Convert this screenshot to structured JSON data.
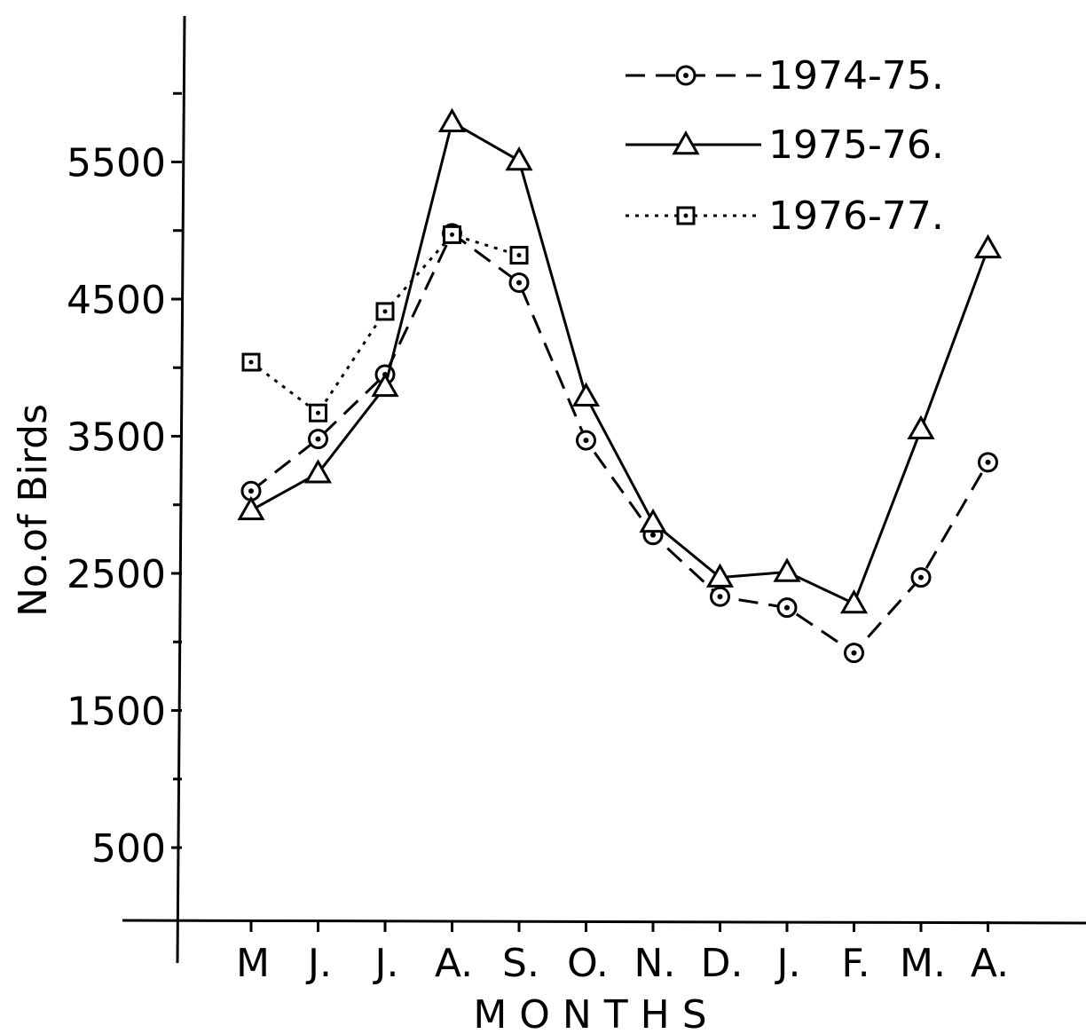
{
  "chart_data": {
    "type": "line",
    "title": "",
    "xlabel": "M O N T H S",
    "ylabel": "No.of Birds",
    "categories": [
      "M",
      "J.",
      "J.",
      "A.",
      "S.",
      "O.",
      "N.",
      "D.",
      "J.",
      "F.",
      "M.",
      "A."
    ],
    "yticks": [
      500,
      1500,
      2500,
      3500,
      4500,
      5500
    ],
    "ytick_labels": [
      "500",
      "1500",
      "2500",
      "3500",
      "4500",
      "5500"
    ],
    "ylim": [
      0,
      6700
    ],
    "grid": false,
    "legend_position": "top-right",
    "series": [
      {
        "name": "1974-75.",
        "marker": "circle",
        "line_style": "dashed",
        "values": [
          3100,
          3480,
          3950,
          4980,
          4620,
          3470,
          2780,
          2330,
          2250,
          1920,
          2470,
          3310
        ]
      },
      {
        "name": "1975-76.",
        "marker": "triangle",
        "line_style": "solid",
        "values": [
          2960,
          3230,
          3860,
          5790,
          5510,
          3790,
          2870,
          2470,
          2510,
          2280,
          3550,
          4870
        ]
      },
      {
        "name": "1976-77.",
        "marker": "square",
        "line_style": "dotted",
        "values": [
          4040,
          3670,
          4410,
          4970,
          4820,
          null,
          null,
          null,
          null,
          null,
          null,
          null
        ]
      }
    ]
  }
}
